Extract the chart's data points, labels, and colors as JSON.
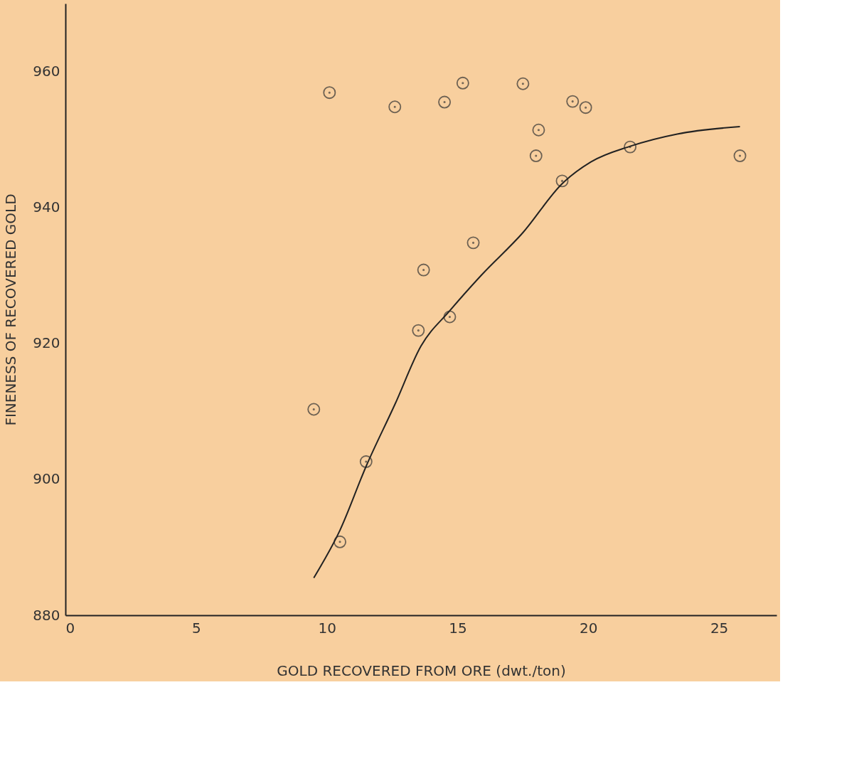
{
  "chart_data": {
    "type": "scatter",
    "xlabel": "GOLD RECOVERED FROM ORE (dwt./ton)",
    "ylabel": "FINENESS OF RECOVERED GOLD",
    "xlim": [
      0,
      27.2
    ],
    "ylim": [
      880,
      970
    ],
    "xticks": [
      0,
      5,
      10,
      15,
      20,
      25
    ],
    "yticks": [
      880,
      900,
      920,
      940,
      960
    ],
    "marker": "circle",
    "series": [
      {
        "color": "#333333",
        "x": [
          9.5,
          10.1,
          10.5,
          11.5,
          12.6,
          13.5,
          13.7,
          14.5,
          14.7,
          15.2,
          15.6,
          17.5,
          18.0,
          18.1,
          19.0,
          19.4,
          19.9,
          21.6,
          25.8
        ],
        "values": [
          910.3,
          956.9,
          890.8,
          902.6,
          954.8,
          921.9,
          930.8,
          955.5,
          923.9,
          958.3,
          934.8,
          958.2,
          947.6,
          951.4,
          943.9,
          955.6,
          954.7,
          948.9,
          947.6
        ]
      },
      {
        "type": "line",
        "color": "#222222",
        "line_style": "solid",
        "marker": "none",
        "x": [
          9.5,
          10.5,
          11.5,
          12.6,
          13.6,
          14.7,
          15.9,
          17.5,
          19.0,
          20.1,
          21.6,
          23.4,
          25.8
        ],
        "values": [
          885.5,
          892.5,
          901.9,
          911.0,
          919.6,
          924.8,
          930.0,
          936.3,
          943.5,
          946.7,
          949.0,
          950.8,
          951.9
        ]
      }
    ]
  }
}
